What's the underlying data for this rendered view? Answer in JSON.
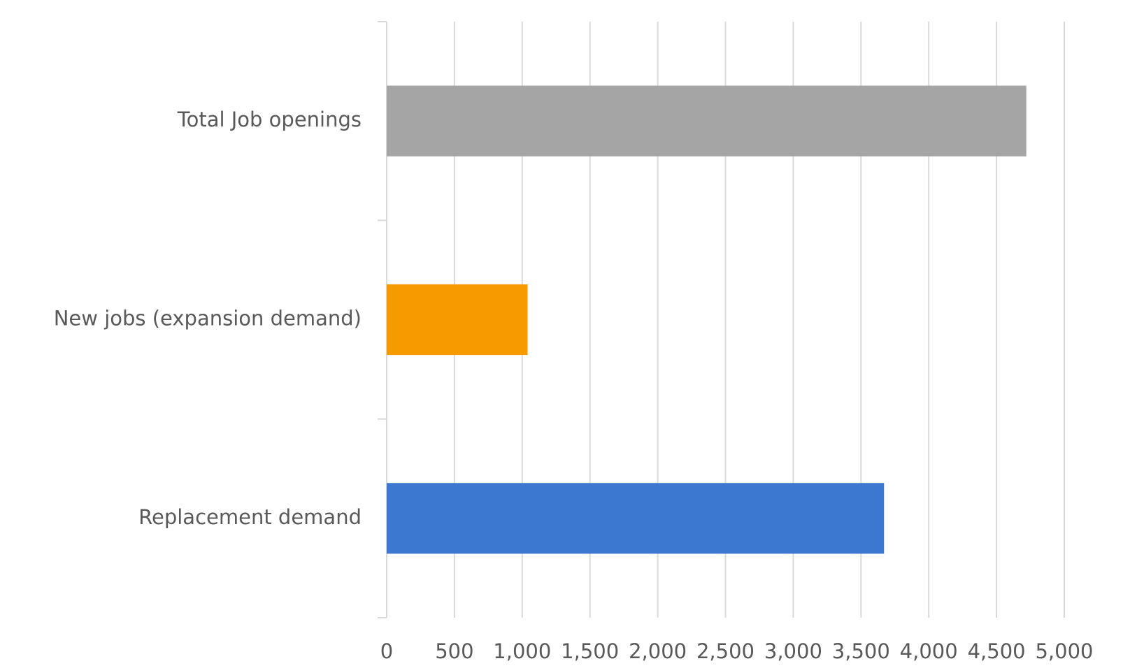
{
  "chart_data": {
    "type": "hbar",
    "categories": [
      "Total Job openings",
      "New jobs (expansion demand)",
      "Replacement demand"
    ],
    "values": [
      4720,
      1040,
      3670
    ],
    "colors": [
      "#a5a5a5",
      "#f59b00",
      "#3c78d0"
    ],
    "xlim": [
      0,
      5000
    ],
    "xticks": [
      0,
      500,
      {
        "value": 1000,
        "label": "1,000"
      },
      {
        "value": 1500,
        "label": "1,500"
      },
      {
        "value": 2000,
        "label": "2,000"
      },
      {
        "value": 2500,
        "label": "2,500"
      },
      {
        "value": 3000,
        "label": "3,000"
      },
      {
        "value": 3500,
        "label": "3,500"
      },
      {
        "value": 4000,
        "label": "4,000"
      },
      {
        "value": 4500,
        "label": "4,500"
      },
      {
        "value": 5000,
        "label": "5,000"
      }
    ],
    "grid": true
  }
}
